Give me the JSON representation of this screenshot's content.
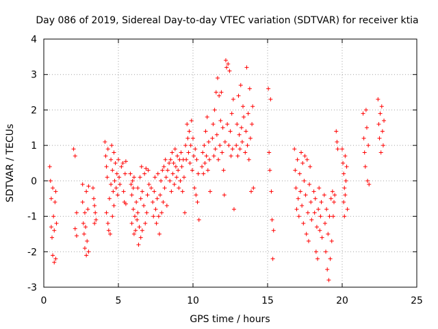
{
  "chart_data": {
    "type": "scatter",
    "title": "Day 086 of 2019, Sidereal Day-to-day VTEC variation (SDTVAR) for receiver ktia",
    "xlabel": "GPS time / hours",
    "ylabel": "SDTVAR / TECUs",
    "xlim": [
      0,
      25
    ],
    "ylim": [
      -3,
      4
    ],
    "xticks": [
      "0",
      "5",
      "10",
      "15",
      "20",
      "25"
    ],
    "yticks": [
      "-3",
      "-2",
      "-1",
      "0",
      "1",
      "2",
      "3",
      "4"
    ],
    "grid": true,
    "marker": "+",
    "color": "#ff0000",
    "series": [
      {
        "name": "SDTVAR",
        "points": [
          [
            0.4,
            0.4
          ],
          [
            0.45,
            0.0
          ],
          [
            0.5,
            -0.5
          ],
          [
            0.5,
            -1.3
          ],
          [
            0.55,
            -1.6
          ],
          [
            0.6,
            -0.2
          ],
          [
            0.6,
            -2.1
          ],
          [
            0.65,
            -1.0
          ],
          [
            0.7,
            -2.3
          ],
          [
            0.7,
            -1.4
          ],
          [
            0.75,
            -0.6
          ],
          [
            0.8,
            -2.2
          ],
          [
            0.8,
            -0.3
          ],
          [
            0.85,
            -1.2
          ],
          [
            2.0,
            0.9
          ],
          [
            2.1,
            0.7
          ],
          [
            2.1,
            -1.35
          ],
          [
            2.2,
            -0.9
          ],
          [
            2.2,
            -1.55
          ],
          [
            2.6,
            -0.1
          ],
          [
            2.6,
            -0.6
          ],
          [
            2.65,
            -1.2
          ],
          [
            2.7,
            -1.5
          ],
          [
            2.75,
            -0.9
          ],
          [
            2.75,
            -1.9
          ],
          [
            2.8,
            -1.3
          ],
          [
            2.85,
            -2.1
          ],
          [
            2.85,
            -0.3
          ],
          [
            2.9,
            -1.7
          ],
          [
            2.95,
            -0.8
          ],
          [
            3.0,
            -2.0
          ],
          [
            3.0,
            -0.15
          ],
          [
            3.3,
            -0.2
          ],
          [
            3.35,
            -0.5
          ],
          [
            3.4,
            -1.2
          ],
          [
            3.4,
            -0.7
          ],
          [
            3.45,
            -0.9
          ],
          [
            3.5,
            -1.1
          ],
          [
            4.1,
            1.1
          ],
          [
            4.15,
            0.7
          ],
          [
            4.2,
            0.4
          ],
          [
            4.2,
            -0.9
          ],
          [
            4.25,
            0.1
          ],
          [
            4.3,
            -1.2
          ],
          [
            4.3,
            0.9
          ],
          [
            4.35,
            -1.4
          ],
          [
            4.4,
            -0.5
          ],
          [
            4.45,
            -1.5
          ],
          [
            4.5,
            0.6
          ],
          [
            4.5,
            -0.1
          ],
          [
            4.55,
            1.0
          ],
          [
            4.6,
            -1.0
          ],
          [
            4.6,
            0.3
          ],
          [
            4.65,
            -0.3
          ],
          [
            4.7,
            0.8
          ],
          [
            4.7,
            -0.7
          ],
          [
            4.75,
            0.0
          ],
          [
            4.8,
            0.5
          ],
          [
            4.85,
            -0.2
          ],
          [
            4.9,
            0.2
          ],
          [
            4.95,
            -0.4
          ],
          [
            5.0,
            0.6
          ],
          [
            5.05,
            0.1
          ],
          [
            5.1,
            -0.1
          ],
          [
            5.2,
            0.4
          ],
          [
            5.3,
            0.5
          ],
          [
            5.35,
            -0.3
          ],
          [
            5.4,
            -0.6
          ],
          [
            5.45,
            0.2
          ],
          [
            5.5,
            0.55
          ],
          [
            5.5,
            -0.65
          ],
          [
            5.8,
            0.2
          ],
          [
            5.85,
            -0.1
          ],
          [
            5.9,
            -0.4
          ],
          [
            5.95,
            0.0
          ],
          [
            6.0,
            -0.2
          ],
          [
            6.05,
            0.1
          ],
          [
            5.9,
            -1.2
          ],
          [
            6.0,
            -0.8
          ],
          [
            6.05,
            -1.5
          ],
          [
            6.1,
            -1.0
          ],
          [
            6.15,
            -1.4
          ],
          [
            6.2,
            -0.6
          ],
          [
            6.25,
            -1.1
          ],
          [
            6.3,
            -0.2
          ],
          [
            6.3,
            -0.9
          ],
          [
            6.35,
            -1.8
          ],
          [
            6.4,
            -1.3
          ],
          [
            6.45,
            0.1
          ],
          [
            6.5,
            -0.5
          ],
          [
            6.5,
            -1.6
          ],
          [
            6.55,
            0.4
          ],
          [
            6.6,
            -0.3
          ],
          [
            6.6,
            -1.4
          ],
          [
            6.7,
            -0.7
          ],
          [
            6.75,
            0.2
          ],
          [
            6.8,
            -1.2
          ],
          [
            6.85,
            0.35
          ],
          [
            6.9,
            -0.9
          ],
          [
            6.95,
            -0.4
          ],
          [
            7.0,
            0.3
          ],
          [
            7.05,
            -0.1
          ],
          [
            7.2,
            -0.2
          ],
          [
            7.3,
            -0.6
          ],
          [
            7.35,
            -1.0
          ],
          [
            7.4,
            -0.3
          ],
          [
            7.45,
            0.1
          ],
          [
            7.5,
            -0.8
          ],
          [
            7.55,
            -1.2
          ],
          [
            7.6,
            -0.5
          ],
          [
            7.65,
            0.2
          ],
          [
            7.7,
            -1.0
          ],
          [
            7.75,
            -1.5
          ],
          [
            7.8,
            -0.4
          ],
          [
            7.85,
            0.0
          ],
          [
            7.9,
            -0.9
          ],
          [
            7.95,
            0.3
          ],
          [
            8.0,
            -0.6
          ],
          [
            8.05,
            0.4
          ],
          [
            8.1,
            -0.2
          ],
          [
            8.15,
            0.6
          ],
          [
            8.2,
            0.1
          ],
          [
            8.25,
            -0.7
          ],
          [
            8.3,
            0.3
          ],
          [
            8.4,
            0.5
          ],
          [
            8.45,
            0.0
          ],
          [
            8.5,
            0.6
          ],
          [
            8.55,
            -0.3
          ],
          [
            8.6,
            0.8
          ],
          [
            8.65,
            0.2
          ],
          [
            8.7,
            0.5
          ],
          [
            8.75,
            -0.1
          ],
          [
            8.8,
            0.9
          ],
          [
            8.85,
            0.4
          ],
          [
            8.9,
            0.1
          ],
          [
            8.95,
            0.7
          ],
          [
            9.0,
            0.3
          ],
          [
            9.05,
            -0.2
          ],
          [
            9.1,
            0.6
          ],
          [
            9.15,
            0.0
          ],
          [
            9.2,
            0.8
          ],
          [
            9.25,
            0.4
          ],
          [
            9.3,
            -0.3
          ],
          [
            9.35,
            0.6
          ],
          [
            9.4,
            0.1
          ],
          [
            9.45,
            -0.9
          ],
          [
            9.5,
            1.0
          ],
          [
            9.55,
            0.6
          ],
          [
            9.6,
            1.6
          ],
          [
            9.65,
            1.2
          ],
          [
            9.7,
            0.8
          ],
          [
            9.75,
            1.4
          ],
          [
            9.8,
            0.5
          ],
          [
            9.85,
            1.0
          ],
          [
            9.9,
            1.7
          ],
          [
            9.95,
            0.3
          ],
          [
            10.0,
            1.2
          ],
          [
            10.05,
            0.7
          ],
          [
            10.1,
            -0.2
          ],
          [
            10.15,
            0.9
          ],
          [
            10.2,
            -0.4
          ],
          [
            10.25,
            0.6
          ],
          [
            10.3,
            -0.6
          ],
          [
            10.35,
            0.2
          ],
          [
            10.4,
            -1.1
          ],
          [
            10.6,
            0.4
          ],
          [
            10.65,
            0.8
          ],
          [
            10.7,
            0.2
          ],
          [
            10.75,
            1.0
          ],
          [
            10.8,
            0.5
          ],
          [
            10.85,
            1.4
          ],
          [
            10.9,
            0.7
          ],
          [
            10.95,
            1.8
          ],
          [
            11.0,
            0.3
          ],
          [
            11.05,
            1.1
          ],
          [
            11.1,
            0.6
          ],
          [
            11.15,
            -0.3
          ],
          [
            11.3,
            1.2
          ],
          [
            11.35,
            1.6
          ],
          [
            11.4,
            0.7
          ],
          [
            11.45,
            2.0
          ],
          [
            11.5,
            0.9
          ],
          [
            11.55,
            2.5
          ],
          [
            11.6,
            1.3
          ],
          [
            11.65,
            2.9
          ],
          [
            11.7,
            0.6
          ],
          [
            11.75,
            2.4
          ],
          [
            11.8,
            1.0
          ],
          [
            11.85,
            1.7
          ],
          [
            11.9,
            2.5
          ],
          [
            11.95,
            0.8
          ],
          [
            12.0,
            1.5
          ],
          [
            12.05,
            0.3
          ],
          [
            12.1,
            -0.4
          ],
          [
            12.15,
            1.1
          ],
          [
            12.2,
            3.4
          ],
          [
            12.25,
            3.2
          ],
          [
            12.3,
            1.6
          ],
          [
            12.35,
            3.3
          ],
          [
            12.4,
            1.0
          ],
          [
            12.45,
            3.1
          ],
          [
            12.5,
            1.4
          ],
          [
            12.55,
            0.7
          ],
          [
            12.6,
            1.9
          ],
          [
            12.65,
            0.9
          ],
          [
            12.7,
            2.3
          ],
          [
            12.75,
            -0.8
          ],
          [
            12.9,
            1.0
          ],
          [
            12.95,
            1.6
          ],
          [
            13.0,
            0.7
          ],
          [
            13.05,
            2.4
          ],
          [
            13.1,
            1.3
          ],
          [
            13.15,
            0.9
          ],
          [
            13.2,
            2.7
          ],
          [
            13.25,
            1.5
          ],
          [
            13.3,
            1.1
          ],
          [
            13.35,
            2.1
          ],
          [
            13.4,
            1.8
          ],
          [
            13.5,
            0.8
          ],
          [
            13.55,
            1.4
          ],
          [
            13.6,
            3.2
          ],
          [
            13.65,
            1.0
          ],
          [
            13.7,
            1.9
          ],
          [
            13.75,
            0.6
          ],
          [
            13.8,
            2.6
          ],
          [
            13.85,
            1.2
          ],
          [
            13.9,
            -0.3
          ],
          [
            13.95,
            1.6
          ],
          [
            14.0,
            2.1
          ],
          [
            14.05,
            -0.2
          ],
          [
            15.05,
            2.6
          ],
          [
            15.1,
            0.8
          ],
          [
            15.15,
            0.3
          ],
          [
            15.2,
            2.3
          ],
          [
            15.25,
            -0.3
          ],
          [
            15.3,
            -1.1
          ],
          [
            15.35,
            -2.2
          ],
          [
            15.4,
            -1.4
          ],
          [
            16.8,
            0.9
          ],
          [
            16.85,
            0.3
          ],
          [
            16.9,
            -0.2
          ],
          [
            16.95,
            -0.8
          ],
          [
            17.0,
            0.6
          ],
          [
            17.05,
            -0.5
          ],
          [
            17.1,
            -1.0
          ],
          [
            17.15,
            0.2
          ],
          [
            17.2,
            -0.3
          ],
          [
            17.25,
            0.8
          ],
          [
            17.3,
            -0.7
          ],
          [
            17.35,
            0.5
          ],
          [
            17.4,
            -1.2
          ],
          [
            17.45,
            0.0
          ],
          [
            17.5,
            0.7
          ],
          [
            17.55,
            -0.4
          ],
          [
            17.6,
            -1.5
          ],
          [
            17.65,
            0.6
          ],
          [
            17.7,
            -0.9
          ],
          [
            17.75,
            -1.7
          ],
          [
            17.8,
            -0.1
          ],
          [
            17.85,
            0.4
          ],
          [
            17.9,
            -0.6
          ],
          [
            17.95,
            -1.1
          ],
          [
            18.1,
            -0.3
          ],
          [
            18.15,
            -0.9
          ],
          [
            18.2,
            -0.5
          ],
          [
            18.25,
            -2.0
          ],
          [
            18.3,
            -1.3
          ],
          [
            18.35,
            -2.2
          ],
          [
            18.4,
            -0.8
          ],
          [
            18.45,
            -0.2
          ],
          [
            18.5,
            -1.4
          ],
          [
            18.55,
            -1.0
          ],
          [
            18.6,
            -0.6
          ],
          [
            18.65,
            -1.6
          ],
          [
            18.8,
            -0.4
          ],
          [
            18.85,
            -1.2
          ],
          [
            18.9,
            -2.0
          ],
          [
            18.95,
            -0.8
          ],
          [
            19.0,
            -2.5
          ],
          [
            19.05,
            -1.5
          ],
          [
            19.1,
            -2.8
          ],
          [
            19.15,
            -1.0
          ],
          [
            19.2,
            -2.2
          ],
          [
            19.25,
            -0.5
          ],
          [
            19.3,
            -1.7
          ],
          [
            19.35,
            -0.3
          ],
          [
            19.4,
            -1.0
          ],
          [
            19.45,
            -0.6
          ],
          [
            19.5,
            -0.4
          ],
          [
            19.6,
            1.4
          ],
          [
            19.65,
            1.1
          ],
          [
            19.7,
            0.9
          ],
          [
            20.0,
            0.9
          ],
          [
            20.05,
            0.5
          ],
          [
            20.1,
            0.2
          ],
          [
            20.1,
            -0.6
          ],
          [
            20.15,
            -0.2
          ],
          [
            20.15,
            -1.0
          ],
          [
            20.2,
            0.7
          ],
          [
            20.2,
            -0.4
          ],
          [
            20.25,
            0.0
          ],
          [
            20.3,
            0.4
          ],
          [
            20.35,
            -0.8
          ],
          [
            21.4,
            1.9
          ],
          [
            21.45,
            1.2
          ],
          [
            21.5,
            0.8
          ],
          [
            21.55,
            0.4
          ],
          [
            21.6,
            2.0
          ],
          [
            21.65,
            1.5
          ],
          [
            21.7,
            0.0
          ],
          [
            21.75,
            1.0
          ],
          [
            21.8,
            -0.1
          ],
          [
            22.4,
            2.3
          ],
          [
            22.45,
            1.6
          ],
          [
            22.5,
            1.2
          ],
          [
            22.55,
            1.9
          ],
          [
            22.6,
            0.8
          ],
          [
            22.65,
            2.1
          ],
          [
            22.7,
            1.4
          ],
          [
            22.75,
            1.0
          ],
          [
            22.8,
            1.7
          ]
        ]
      }
    ]
  }
}
